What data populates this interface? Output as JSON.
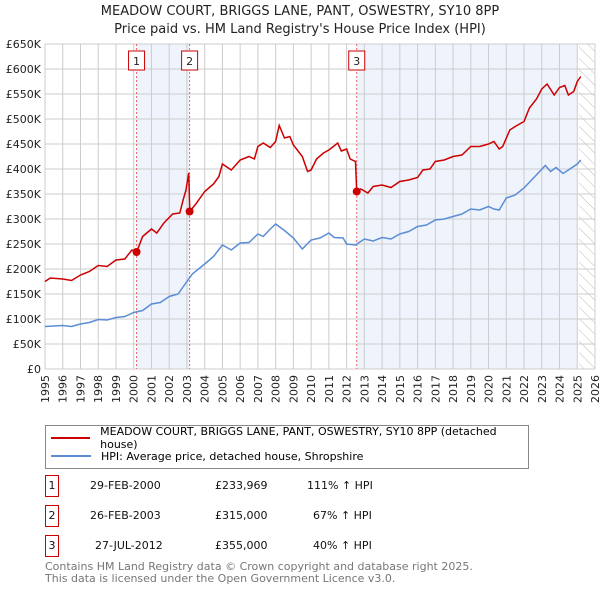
{
  "chart_data": {
    "type": "line",
    "title": "MEADOW COURT, BRIGGS LANE, PANT, OSWESTRY, SY10 8PP",
    "subtitle": "Price paid vs. HM Land Registry's House Price Index (HPI)",
    "xlim": [
      1995,
      2026
    ],
    "ylim": [
      0,
      650000
    ],
    "x_ticks": [
      "1995",
      "1996",
      "1997",
      "1998",
      "1999",
      "2000",
      "2001",
      "2002",
      "2003",
      "2004",
      "2005",
      "2006",
      "2007",
      "2008",
      "2009",
      "2010",
      "2011",
      "2012",
      "2013",
      "2014",
      "2015",
      "2016",
      "2017",
      "2018",
      "2019",
      "2020",
      "2021",
      "2022",
      "2023",
      "2024",
      "2025",
      "2026"
    ],
    "y_ticks": [
      {
        "v": 0,
        "label": "£0"
      },
      {
        "v": 50000,
        "label": "£50K"
      },
      {
        "v": 100000,
        "label": "£100K"
      },
      {
        "v": 150000,
        "label": "£150K"
      },
      {
        "v": 200000,
        "label": "£200K"
      },
      {
        "v": 250000,
        "label": "£250K"
      },
      {
        "v": 300000,
        "label": "£300K"
      },
      {
        "v": 350000,
        "label": "£350K"
      },
      {
        "v": 400000,
        "label": "£400K"
      },
      {
        "v": 450000,
        "label": "£450K"
      },
      {
        "v": 500000,
        "label": "£500K"
      },
      {
        "v": 550000,
        "label": "£550K"
      },
      {
        "v": 600000,
        "label": "£600K"
      },
      {
        "v": 650000,
        "label": "£650K"
      }
    ],
    "grid": true,
    "series": [
      {
        "name": "MEADOW COURT, BRIGGS LANE, PANT, OSWESTRY, SY10 8PP (detached house)",
        "color": "#cc0000",
        "x": [
          1995,
          1995.3,
          1996,
          1996.5,
          1997,
          1997.5,
          1998,
          1998.5,
          1999,
          1999.5,
          1999.9,
          2000.17,
          2000.5,
          2001,
          2001.3,
          2001.7,
          2002.2,
          2002.6,
          2002.8,
          2002.95,
          2003.1,
          2003.16,
          2003.5,
          2004,
          2004.5,
          2004.8,
          2005,
          2005.5,
          2006,
          2006.5,
          2006.8,
          2007,
          2007.3,
          2007.7,
          2008,
          2008.2,
          2008.5,
          2008.8,
          2009,
          2009.5,
          2009.8,
          2010,
          2010.3,
          2010.7,
          2011,
          2011.5,
          2011.7,
          2012,
          2012.2,
          2012.5,
          2012.57,
          2012.8,
          2013.2,
          2013.5,
          2014,
          2014.5,
          2015,
          2015.5,
          2016,
          2016.3,
          2016.7,
          2017,
          2017.5,
          2018,
          2018.5,
          2019,
          2019.5,
          2020,
          2020.3,
          2020.6,
          2020.8,
          2021.2,
          2021.5,
          2022,
          2022.3,
          2022.7,
          2023,
          2023.3,
          2023.7,
          2024,
          2024.3,
          2024.5,
          2024.8,
          2025,
          2025.2
        ],
        "y": [
          175,
          182,
          180,
          177,
          188,
          195,
          207,
          205,
          218,
          220,
          238,
          234,
          265,
          280,
          272,
          292,
          310,
          312,
          340,
          358,
          392,
          315,
          330,
          355,
          370,
          385,
          410,
          398,
          418,
          425,
          420,
          445,
          452,
          443,
          455,
          487,
          462,
          465,
          448,
          425,
          395,
          398,
          420,
          432,
          438,
          452,
          436,
          440,
          420,
          415,
          355,
          360,
          352,
          365,
          368,
          363,
          375,
          378,
          383,
          398,
          400,
          415,
          418,
          425,
          428,
          445,
          445,
          450,
          455,
          440,
          445,
          478,
          485,
          495,
          522,
          540,
          560,
          570,
          548,
          563,
          567,
          548,
          555,
          575,
          585
        ],
        "y_unit": "thousand GBP"
      },
      {
        "name": "HPI: Average price, detached house, Shropshire",
        "color": "#5b8dd6",
        "x": [
          1995,
          1996,
          1996.5,
          1997,
          1997.5,
          1998,
          1998.5,
          1999,
          1999.5,
          2000,
          2000.5,
          2001,
          2001.5,
          2002,
          2002.5,
          2003,
          2003.3,
          2004,
          2004.5,
          2005,
          2005.5,
          2006,
          2006.5,
          2007,
          2007.3,
          2007.7,
          2008,
          2008.5,
          2009,
          2009.5,
          2010,
          2010.5,
          2011,
          2011.3,
          2011.8,
          2012,
          2012.5,
          2013,
          2013.5,
          2014,
          2014.5,
          2015,
          2015.5,
          2016,
          2016.5,
          2017,
          2017.5,
          2018,
          2018.5,
          2019,
          2019.5,
          2020,
          2020.3,
          2020.6,
          2021,
          2021.5,
          2022,
          2022.4,
          2022.8,
          2023.2,
          2023.5,
          2023.8,
          2024.2,
          2024.5,
          2025,
          2025.2
        ],
        "y": [
          85,
          87,
          85,
          90,
          93,
          99,
          98,
          103,
          105,
          113,
          117,
          130,
          133,
          145,
          150,
          175,
          190,
          210,
          225,
          248,
          238,
          252,
          253,
          270,
          265,
          280,
          290,
          277,
          262,
          240,
          258,
          262,
          272,
          263,
          262,
          250,
          248,
          260,
          256,
          263,
          260,
          270,
          275,
          285,
          288,
          298,
          300,
          305,
          310,
          320,
          318,
          325,
          320,
          318,
          342,
          348,
          362,
          377,
          392,
          407,
          395,
          403,
          391,
          398,
          410,
          418
        ],
        "y_unit": "thousand GBP"
      }
    ],
    "sales": [
      {
        "id": "1",
        "x": 2000.16,
        "y": 233.969,
        "date": "29-FEB-2000",
        "price": "£233,969",
        "hpi": "111% ↑ HPI"
      },
      {
        "id": "2",
        "x": 2003.15,
        "y": 315,
        "date": "26-FEB-2003",
        "price": "£315,000",
        "hpi": "67% ↑ HPI"
      },
      {
        "id": "3",
        "x": 2012.57,
        "y": 355,
        "date": "27-JUL-2012",
        "price": "£355,000",
        "hpi": "40% ↑ HPI"
      }
    ],
    "shaded_ranges": [
      [
        2000.16,
        2003.15
      ],
      [
        2012.57,
        2025.0
      ]
    ],
    "hatched_range": [
      2025.1,
      2026
    ],
    "legend_placement": "below"
  },
  "footer": [
    "Contains HM Land Registry data © Crown copyright and database right 2025.",
    "This data is licensed under the Open Government Licence v3.0."
  ]
}
